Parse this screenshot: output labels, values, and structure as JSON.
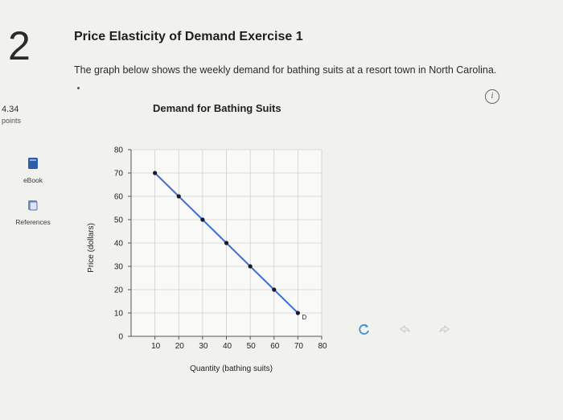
{
  "question": {
    "number": "2",
    "title": "Price Elasticity of Demand Exercise 1",
    "description": "The graph below shows the weekly demand for bathing suits at a resort town in North Carolina.",
    "points_value": "4.34",
    "points_label": "points"
  },
  "sidebar": {
    "items": [
      {
        "label": "eBook",
        "icon": "book-icon"
      },
      {
        "label": "References",
        "icon": "references-icon"
      }
    ]
  },
  "chart_data": {
    "type": "line",
    "title": "Demand for Bathing Suits",
    "xlabel": "Quantity (bathing suits)",
    "ylabel": "Price (dollars)",
    "xlim": [
      0,
      80
    ],
    "ylim": [
      0,
      80
    ],
    "x_ticks": [
      10,
      20,
      30,
      40,
      50,
      60,
      70,
      80
    ],
    "y_ticks": [
      0,
      10,
      20,
      30,
      40,
      50,
      60,
      70,
      80
    ],
    "grid": true,
    "series": [
      {
        "name": "D",
        "color": "#3f6fd6",
        "x": [
          10,
          20,
          30,
          40,
          50,
          60,
          70
        ],
        "y": [
          70,
          60,
          50,
          40,
          30,
          20,
          10
        ]
      }
    ]
  },
  "toolbar": {
    "icons": [
      "reset-icon",
      "undo-icon",
      "redo-icon"
    ],
    "accent": "#3f8fd0"
  }
}
